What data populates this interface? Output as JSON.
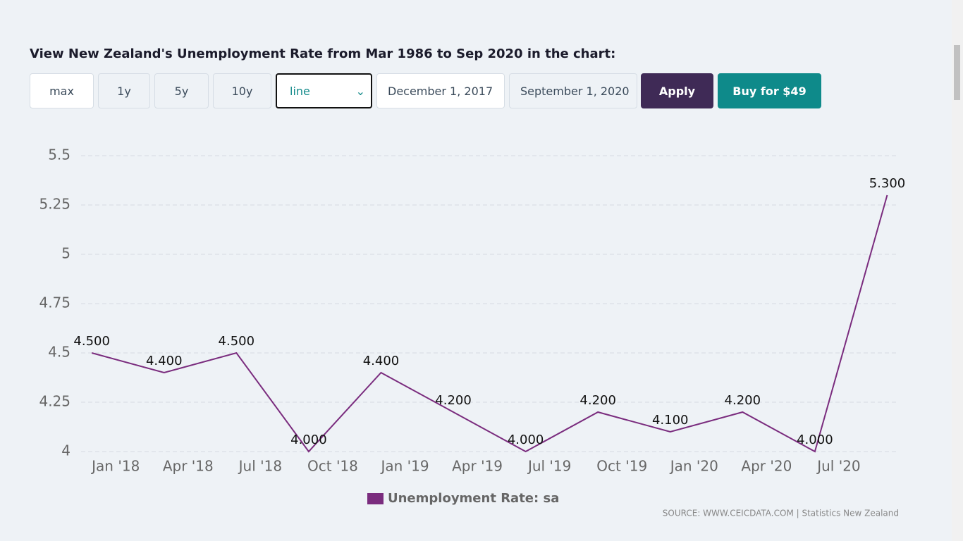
{
  "heading": "View New Zealand's Unemployment Rate from Mar 1986 to Sep 2020 in the chart:",
  "controls": {
    "ranges": [
      "max",
      "1y",
      "5y",
      "10y"
    ],
    "chart_type": "line",
    "start_date": "December 1, 2017",
    "end_date": "September 1, 2020",
    "apply": "Apply",
    "buy": "Buy for $49"
  },
  "source": "SOURCE: WWW.CEICDATA.COM | Statistics New Zealand",
  "chart_data": {
    "type": "line",
    "x": [
      2017.917,
      2018.167,
      2018.417,
      2018.667,
      2018.917,
      2019.167,
      2019.417,
      2019.667,
      2019.917,
      2020.167,
      2020.417,
      2020.667
    ],
    "xlim": [
      2017.88,
      2020.7
    ],
    "xticks": [
      {
        "value": 2018.0,
        "label": "Jan '18"
      },
      {
        "value": 2018.25,
        "label": "Apr '18"
      },
      {
        "value": 2018.5,
        "label": "Jul '18"
      },
      {
        "value": 2018.75,
        "label": "Oct '18"
      },
      {
        "value": 2019.0,
        "label": "Jan '19"
      },
      {
        "value": 2019.25,
        "label": "Apr '19"
      },
      {
        "value": 2019.5,
        "label": "Jul '19"
      },
      {
        "value": 2019.75,
        "label": "Oct '19"
      },
      {
        "value": 2020.0,
        "label": "Jan '20"
      },
      {
        "value": 2020.25,
        "label": "Apr '20"
      },
      {
        "value": 2020.5,
        "label": "Jul '20"
      }
    ],
    "ylim": [
      4,
      5.5
    ],
    "yticks": [
      4,
      4.25,
      4.5,
      4.75,
      5,
      5.25,
      5.5
    ],
    "grid": true,
    "series": [
      {
        "name": "Unemployment Rate: sa",
        "color": "#7a2c7e",
        "values": [
          4.5,
          4.4,
          4.5,
          4.0,
          4.4,
          4.2,
          4.0,
          4.2,
          4.1,
          4.2,
          4.0,
          5.3
        ],
        "value_labels": [
          "4.500",
          "4.400",
          "4.500",
          "4.000",
          "4.400",
          "4.200",
          "4.000",
          "4.200",
          "4.100",
          "4.200",
          "4.000",
          "5.300"
        ]
      }
    ]
  }
}
